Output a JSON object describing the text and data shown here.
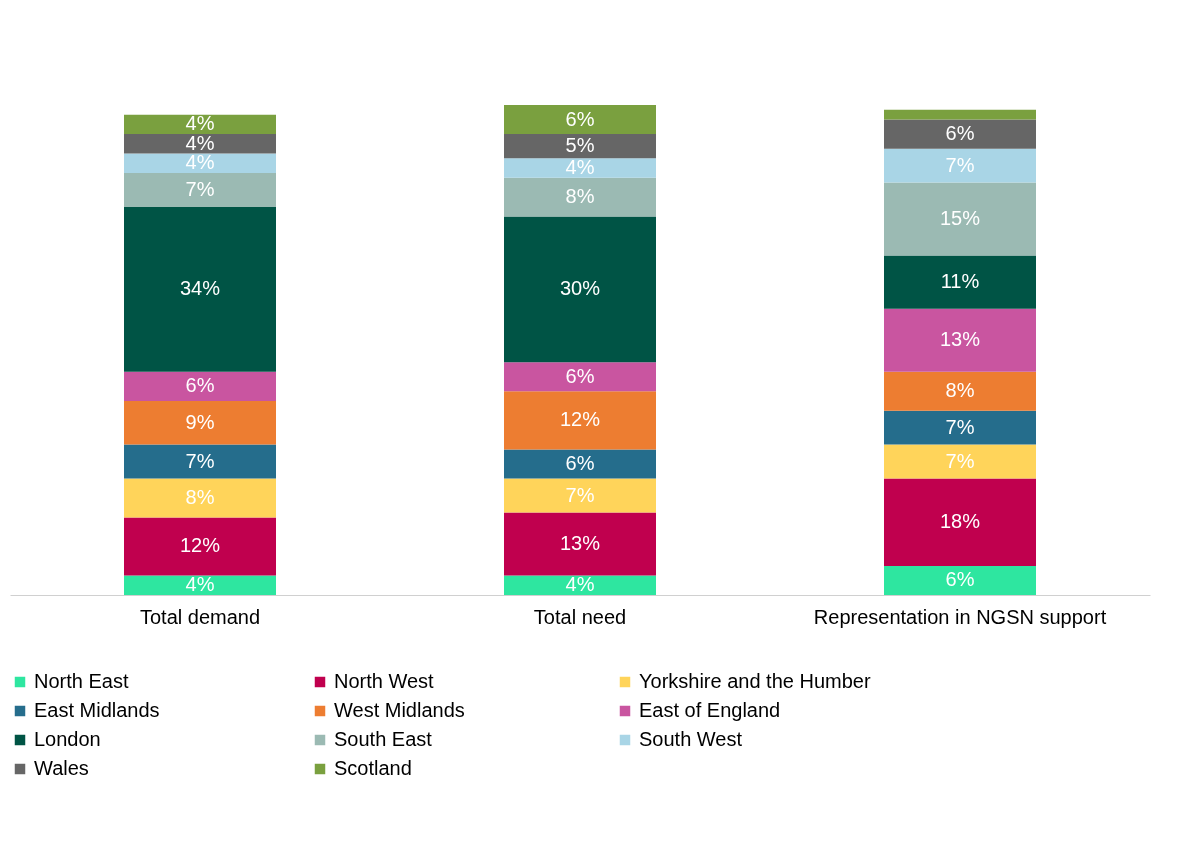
{
  "chart_data": {
    "type": "bar",
    "stacked": true,
    "legend": "bottom",
    "grid": false,
    "categories": [
      "Total demand",
      "Total need",
      "Representation in NGSN support"
    ],
    "series": [
      {
        "name": "North East",
        "color": "#2ee6a0",
        "values": [
          4,
          4,
          6
        ],
        "value_labels": [
          "4%",
          "4%",
          "6%"
        ]
      },
      {
        "name": "North West",
        "color": "#c0004e",
        "values": [
          12,
          13,
          18
        ],
        "value_labels": [
          "12%",
          "13%",
          "18%"
        ]
      },
      {
        "name": "Yorkshire and the Humber",
        "color": "#ffd45a",
        "values": [
          8,
          7,
          7
        ],
        "value_labels": [
          "8%",
          "7%",
          "7%"
        ]
      },
      {
        "name": "East Midlands",
        "color": "#256d8c",
        "values": [
          7,
          6,
          7
        ],
        "value_labels": [
          "7%",
          "6%",
          "7%"
        ]
      },
      {
        "name": "West Midlands",
        "color": "#ed7d31",
        "values": [
          9,
          12,
          8
        ],
        "value_labels": [
          "9%",
          "12%",
          "8%"
        ]
      },
      {
        "name": "East of England",
        "color": "#c955a0",
        "values": [
          6,
          6,
          13
        ],
        "value_labels": [
          "6%",
          "6%",
          "13%"
        ]
      },
      {
        "name": "London",
        "color": "#005445",
        "values": [
          34,
          30,
          11
        ],
        "value_labels": [
          "34%",
          "30%",
          "11%"
        ]
      },
      {
        "name": "South East",
        "color": "#9bbab3",
        "values": [
          7,
          8,
          15
        ],
        "value_labels": [
          "7%",
          "8%",
          "15%"
        ]
      },
      {
        "name": "South West",
        "color": "#a9d5e6",
        "values": [
          4,
          4,
          7
        ],
        "value_labels": [
          "4%",
          "4%",
          "7%"
        ]
      },
      {
        "name": "Wales",
        "color": "#666666",
        "values": [
          4,
          5,
          6
        ],
        "value_labels": [
          "4%",
          "5%",
          "6%"
        ]
      },
      {
        "name": "Scotland",
        "color": "#7aa03f",
        "values": [
          4,
          6,
          2
        ],
        "value_labels": [
          "4%",
          "6%",
          null
        ]
      }
    ]
  }
}
